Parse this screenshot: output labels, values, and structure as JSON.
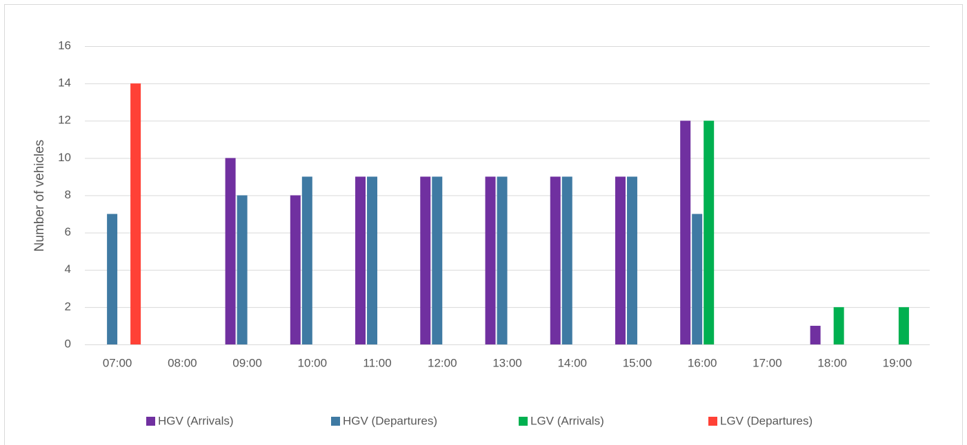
{
  "chart_data": {
    "type": "bar",
    "categories": [
      "07:00",
      "08:00",
      "09:00",
      "10:00",
      "11:00",
      "12:00",
      "13:00",
      "14:00",
      "15:00",
      "16:00",
      "17:00",
      "18:00",
      "19:00"
    ],
    "series": [
      {
        "name": "HGV (Arrivals)",
        "color": "#7030a0",
        "values": [
          0,
          0,
          10,
          8,
          9,
          9,
          9,
          9,
          9,
          12,
          0,
          1,
          0
        ]
      },
      {
        "name": "HGV (Departures)",
        "color": "#3f7aa3",
        "values": [
          7,
          0,
          8,
          9,
          9,
          9,
          9,
          9,
          9,
          7,
          0,
          0,
          0
        ]
      },
      {
        "name": "LGV (Arrivals)",
        "color": "#00b050",
        "values": [
          0,
          0,
          0,
          0,
          0,
          0,
          0,
          0,
          0,
          12,
          0,
          2,
          2
        ]
      },
      {
        "name": "LGV (Departures)",
        "color": "#ff4136",
        "values": [
          14,
          0,
          0,
          0,
          0,
          0,
          0,
          0,
          0,
          0,
          0,
          0,
          0
        ]
      }
    ],
    "y_label": "Number of vehicles",
    "ylim": [
      0,
      16
    ],
    "yticks": [
      0,
      2,
      4,
      6,
      8,
      10,
      12,
      14,
      16
    ],
    "grid": true,
    "legend": "bottom"
  }
}
